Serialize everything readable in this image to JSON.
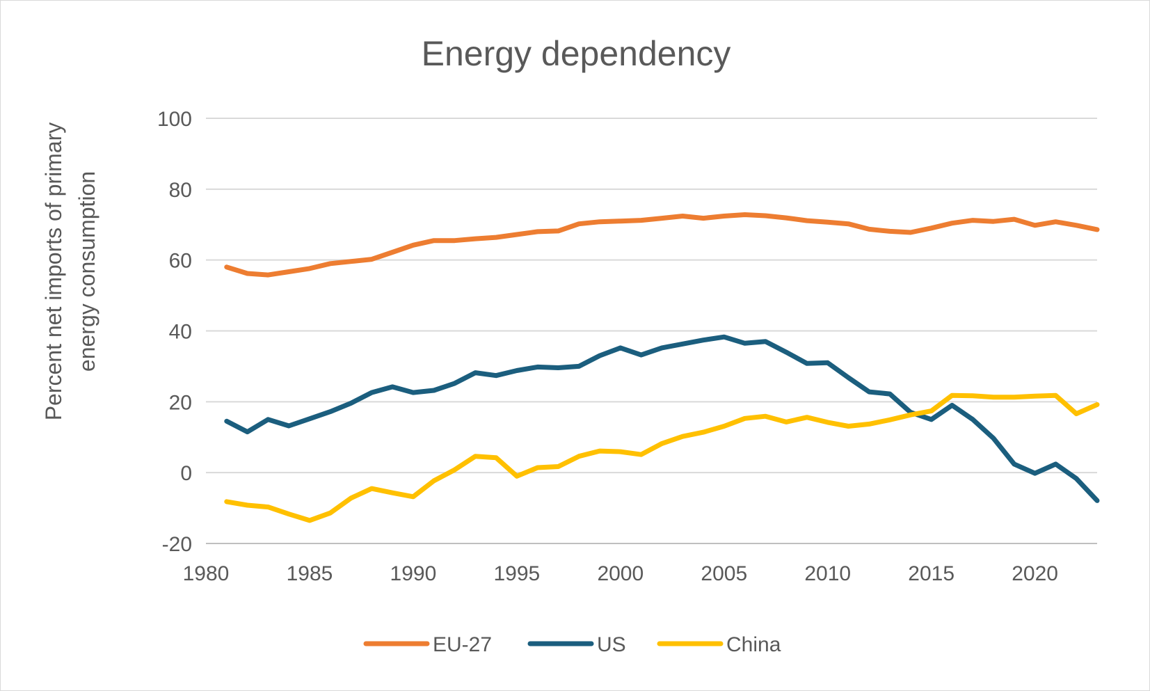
{
  "chart_data": {
    "type": "line",
    "title": "Energy dependency",
    "xlabel": "",
    "ylabel": [
      "Percent net imports of primary",
      "energy consumption"
    ],
    "xlim": [
      1980,
      2023
    ],
    "ylim": [
      -20,
      100
    ],
    "x_ticks": [
      1980,
      1985,
      1990,
      1995,
      2000,
      2005,
      2010,
      2015,
      2020
    ],
    "y_ticks": [
      -20,
      0,
      20,
      40,
      60,
      80,
      100
    ],
    "grid": "horizontal",
    "legend": "bottom",
    "x": [
      1981,
      1982,
      1983,
      1984,
      1985,
      1986,
      1987,
      1988,
      1989,
      1990,
      1991,
      1992,
      1993,
      1994,
      1995,
      1996,
      1997,
      1998,
      1999,
      2000,
      2001,
      2002,
      2003,
      2004,
      2005,
      2006,
      2007,
      2008,
      2009,
      2010,
      2011,
      2012,
      2013,
      2014,
      2015,
      2016,
      2017,
      2018,
      2019,
      2020,
      2021,
      2022,
      2023
    ],
    "series": [
      {
        "name": "EU-27",
        "color": "#ED7D31",
        "values": [
          58,
          56.2,
          55.8,
          56.7,
          57.6,
          59,
          59.6,
          60.2,
          62.2,
          64.2,
          65.5,
          65.5,
          66,
          66.4,
          67.2,
          68,
          68.2,
          70.2,
          70.8,
          71,
          71.2,
          71.8,
          72.4,
          71.8,
          72.4,
          72.8,
          72.5,
          71.9,
          71.1,
          70.7,
          70.2,
          68.7,
          68.1,
          67.8,
          69,
          70.4,
          71.2,
          70.9,
          71.5,
          69.8,
          70.8,
          69.8,
          68.6
        ]
      },
      {
        "name": "US",
        "color": "#1B5E7E",
        "values": [
          14.5,
          11.5,
          15,
          13.2,
          15.2,
          17.2,
          19.6,
          22.6,
          24.2,
          22.6,
          23.2,
          25.2,
          28.2,
          27.4,
          28.8,
          29.8,
          29.6,
          30,
          33,
          35.2,
          33.2,
          35.2,
          36.3,
          37.4,
          38.3,
          36.5,
          37,
          34,
          30.8,
          31,
          26.8,
          22.8,
          22.2,
          17,
          15,
          19,
          15,
          9.7,
          2.4,
          -0.2,
          2.4,
          -1.7,
          -7.9
        ]
      },
      {
        "name": "China",
        "color": "#FFC000",
        "values": [
          -8.2,
          -9.2,
          -9.7,
          -11.7,
          -13.5,
          -11.4,
          -7.2,
          -4.5,
          -5.7,
          -6.8,
          -2.3,
          0.8,
          4.6,
          4.2,
          -1,
          1.4,
          1.7,
          4.6,
          6.1,
          5.9,
          5.1,
          8.2,
          10.2,
          11.4,
          13.1,
          15.3,
          15.9,
          14.3,
          15.6,
          14.2,
          13.1,
          13.7,
          14.9,
          16.3,
          17.4,
          21.8,
          21.7,
          21.3,
          21.3,
          21.6,
          21.8,
          16.6,
          19.2
        ]
      }
    ]
  }
}
